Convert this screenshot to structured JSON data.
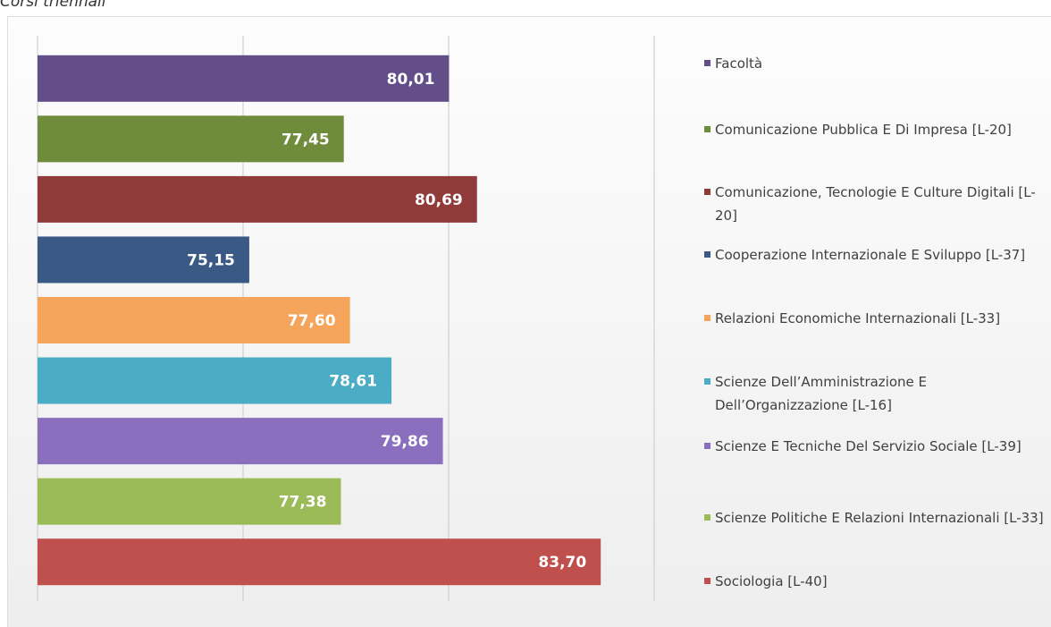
{
  "chart_data": {
    "type": "bar",
    "orientation": "horizontal",
    "title": "Corsi triennali",
    "categories": [
      "Facoltà",
      "Comunicazione Pubblica E Di Impresa [L-20]",
      "Comunicazione, Tecnologie E Culture Digitali [L-20]",
      "Cooperazione Internazionale E Sviluppo [L-37]",
      "Relazioni Economiche Internazionali [L-33]",
      "Scienze Dell’Amministrazione E Dell’Organizzazione [L-16]",
      "Scienze E Tecniche Del Servizio Sociale [L-39]",
      "Scienze Politiche E Relazioni Internazionali [L-33]",
      "Sociologia [L-40]"
    ],
    "values": [
      80.01,
      77.45,
      80.69,
      75.15,
      77.6,
      78.61,
      79.86,
      77.38,
      83.7
    ],
    "value_labels": [
      "80,01",
      "77,45",
      "80,69",
      "75,15",
      "77,60",
      "78,61",
      "79,86",
      "77,38",
      "83,70"
    ],
    "colors": [
      "#644e89",
      "#6f8b3c",
      "#903b3a",
      "#3a5985",
      "#f4a55b",
      "#4bacc6",
      "#8a6fbf",
      "#9bbb59",
      "#c0504d"
    ],
    "xlim": [
      70,
      85
    ],
    "xticks": [
      70,
      75,
      80,
      85
    ],
    "grid": true,
    "legend": "right"
  }
}
